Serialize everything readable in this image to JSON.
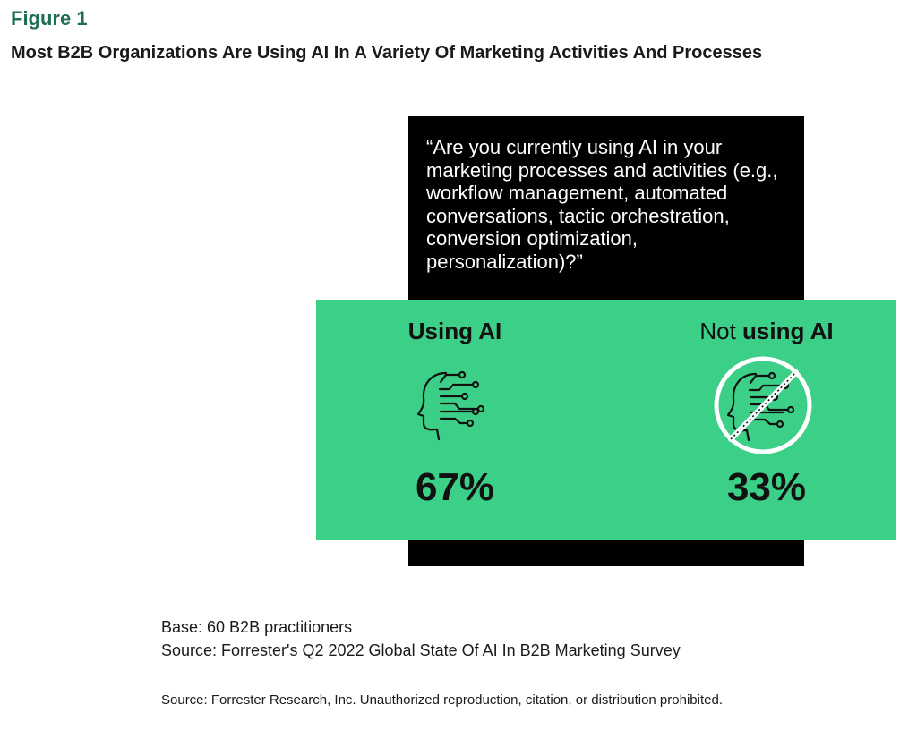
{
  "figure_label": "Figure 1",
  "title": "Most B2B Organizations Are Using AI In A Variety Of Marketing Activities And Processes",
  "question": "“Are you currently using AI in your marketing processes and activities (e.g., workflow management, automated conversations, tactic orchestration, conversion optimization, personalization)?”",
  "colors": {
    "accent_green": "#3ccf88",
    "box_black": "#000000",
    "label_green": "#1f6f54"
  },
  "chart_data": {
    "type": "table",
    "categories": [
      "Using AI",
      "Not using AI"
    ],
    "values": [
      67,
      33
    ],
    "unit": "%",
    "category_labels": {
      "using": {
        "text": "Using AI",
        "display": "67%",
        "icon": "ai-head-icon"
      },
      "not_using": {
        "prefix": "Not ",
        "bold": "using AI",
        "display": "33%",
        "icon": "ai-head-prohibited-icon"
      }
    }
  },
  "base_note": "Base: 60 B2B practitioners",
  "source_note": "Source: Forrester's Q2 2022 Global State Of AI In B2B Marketing Survey",
  "copyright": "Source: Forrester Research, Inc. Unauthorized reproduction, citation, or distribution prohibited."
}
